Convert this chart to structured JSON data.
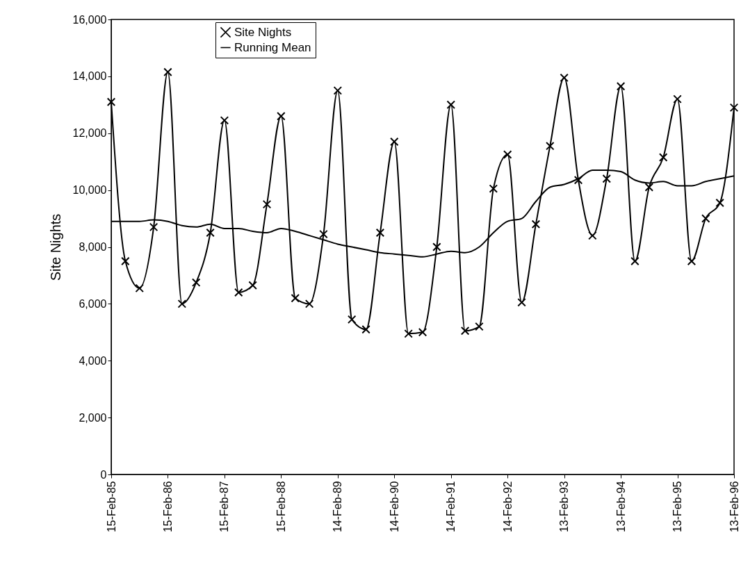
{
  "chart_data": {
    "type": "line",
    "ylabel": "Site Nights",
    "categories": [
      "15-Feb-85",
      null,
      null,
      null,
      "15-Feb-86",
      null,
      null,
      null,
      "15-Feb-87",
      null,
      null,
      null,
      "15-Feb-88",
      null,
      null,
      null,
      "14-Feb-89",
      null,
      null,
      null,
      "14-Feb-90",
      null,
      null,
      null,
      "14-Feb-91",
      null,
      null,
      null,
      "14-Feb-92",
      null,
      null,
      null,
      "13-Feb-93",
      null,
      null,
      null,
      "13-Feb-94",
      null,
      null,
      null,
      "13-Feb-95",
      null,
      null,
      null,
      "13-Feb-96"
    ],
    "series": [
      {
        "name": "Site Nights",
        "color": "#000000",
        "marker": "cross",
        "values": [
          13100,
          7500,
          6550,
          8700,
          14150,
          6000,
          6750,
          8500,
          12450,
          6400,
          6650,
          9500,
          12600,
          6200,
          6000,
          8450,
          13500,
          5450,
          5100,
          8500,
          11700,
          4950,
          5000,
          8000,
          13000,
          5050,
          5200,
          10050,
          11250,
          6050,
          8800,
          11550,
          13950,
          10350,
          8400,
          10400,
          13650,
          7500,
          10100,
          11150,
          13200,
          7500,
          9000,
          9550,
          12900
        ]
      },
      {
        "name": "Running Mean",
        "color": "#000000",
        "marker": "none",
        "values": [
          8900,
          8900,
          8900,
          8950,
          8900,
          8750,
          8700,
          8800,
          8650,
          8650,
          8550,
          8500,
          8650,
          8550,
          8400,
          8250,
          8100,
          8000,
          7900,
          7800,
          7750,
          7700,
          7650,
          7750,
          7850,
          7800,
          8000,
          8500,
          8900,
          9000,
          9600,
          10100,
          10200,
          10400,
          10700,
          10700,
          10650,
          10350,
          10250,
          10300,
          10150,
          10150,
          10300,
          10400,
          10500
        ]
      }
    ],
    "ylim": [
      0,
      16000
    ],
    "yticks": [
      0,
      {
        "value": 2000,
        "label": "2,000"
      },
      {
        "value": 4000,
        "label": "4,000"
      },
      {
        "value": 6000,
        "label": "6,000"
      },
      {
        "value": 8000,
        "label": "8,000"
      },
      {
        "value": 10000,
        "label": "10,000"
      },
      {
        "value": 12000,
        "label": "12,000"
      },
      {
        "value": 14000,
        "label": "14,000"
      },
      {
        "value": 16000,
        "label": "16,000"
      }
    ],
    "legend": "top",
    "grid": false,
    "line_style": "solid"
  }
}
